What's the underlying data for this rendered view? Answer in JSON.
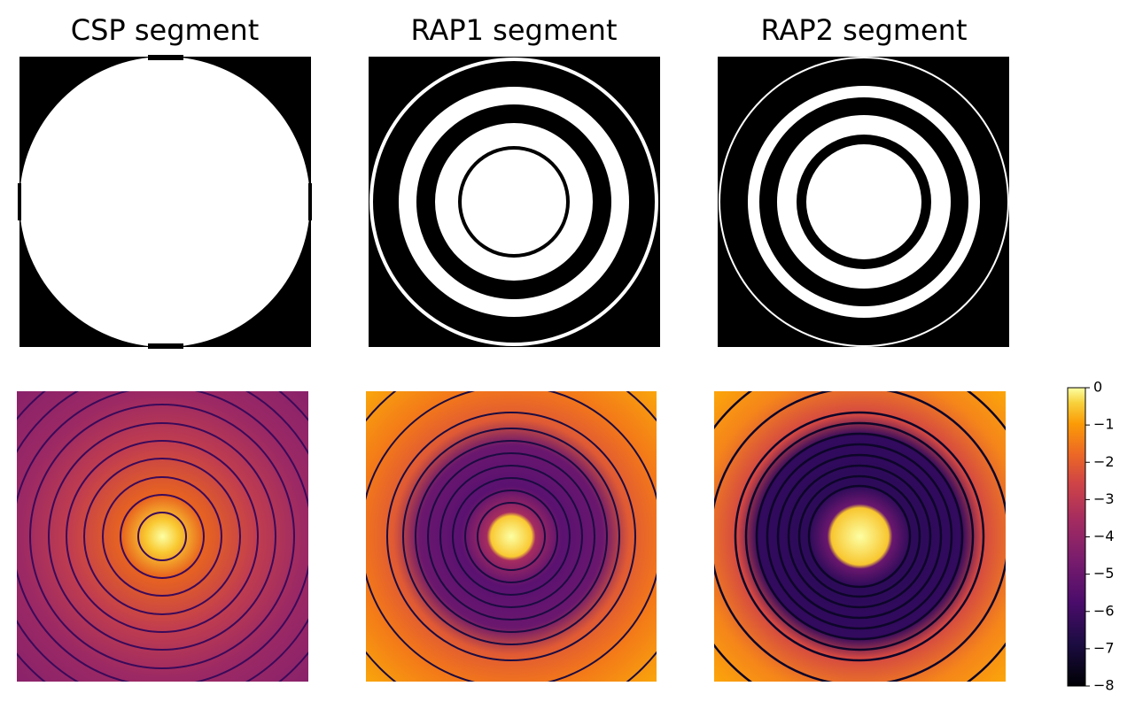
{
  "chart_data": [
    {
      "type": "image",
      "title": "CSP segment"
    },
    {
      "type": "image",
      "title": "RAP1 segment"
    },
    {
      "type": "image",
      "title": "RAP2 segment"
    },
    {
      "type": "colorbar",
      "colormap": "inferno",
      "ylim": [
        -8,
        0
      ],
      "yticks": [
        0,
        {
          "value": -1,
          "label": "−1"
        },
        {
          "value": -2,
          "label": "−2"
        },
        {
          "value": -3,
          "label": "−3"
        },
        {
          "value": -4,
          "label": "−4"
        },
        {
          "value": -5,
          "label": "−5"
        },
        {
          "value": -6,
          "label": "−6"
        },
        {
          "value": -7,
          "label": "−7"
        },
        {
          "value": -8,
          "label": "−8"
        }
      ]
    }
  ]
}
